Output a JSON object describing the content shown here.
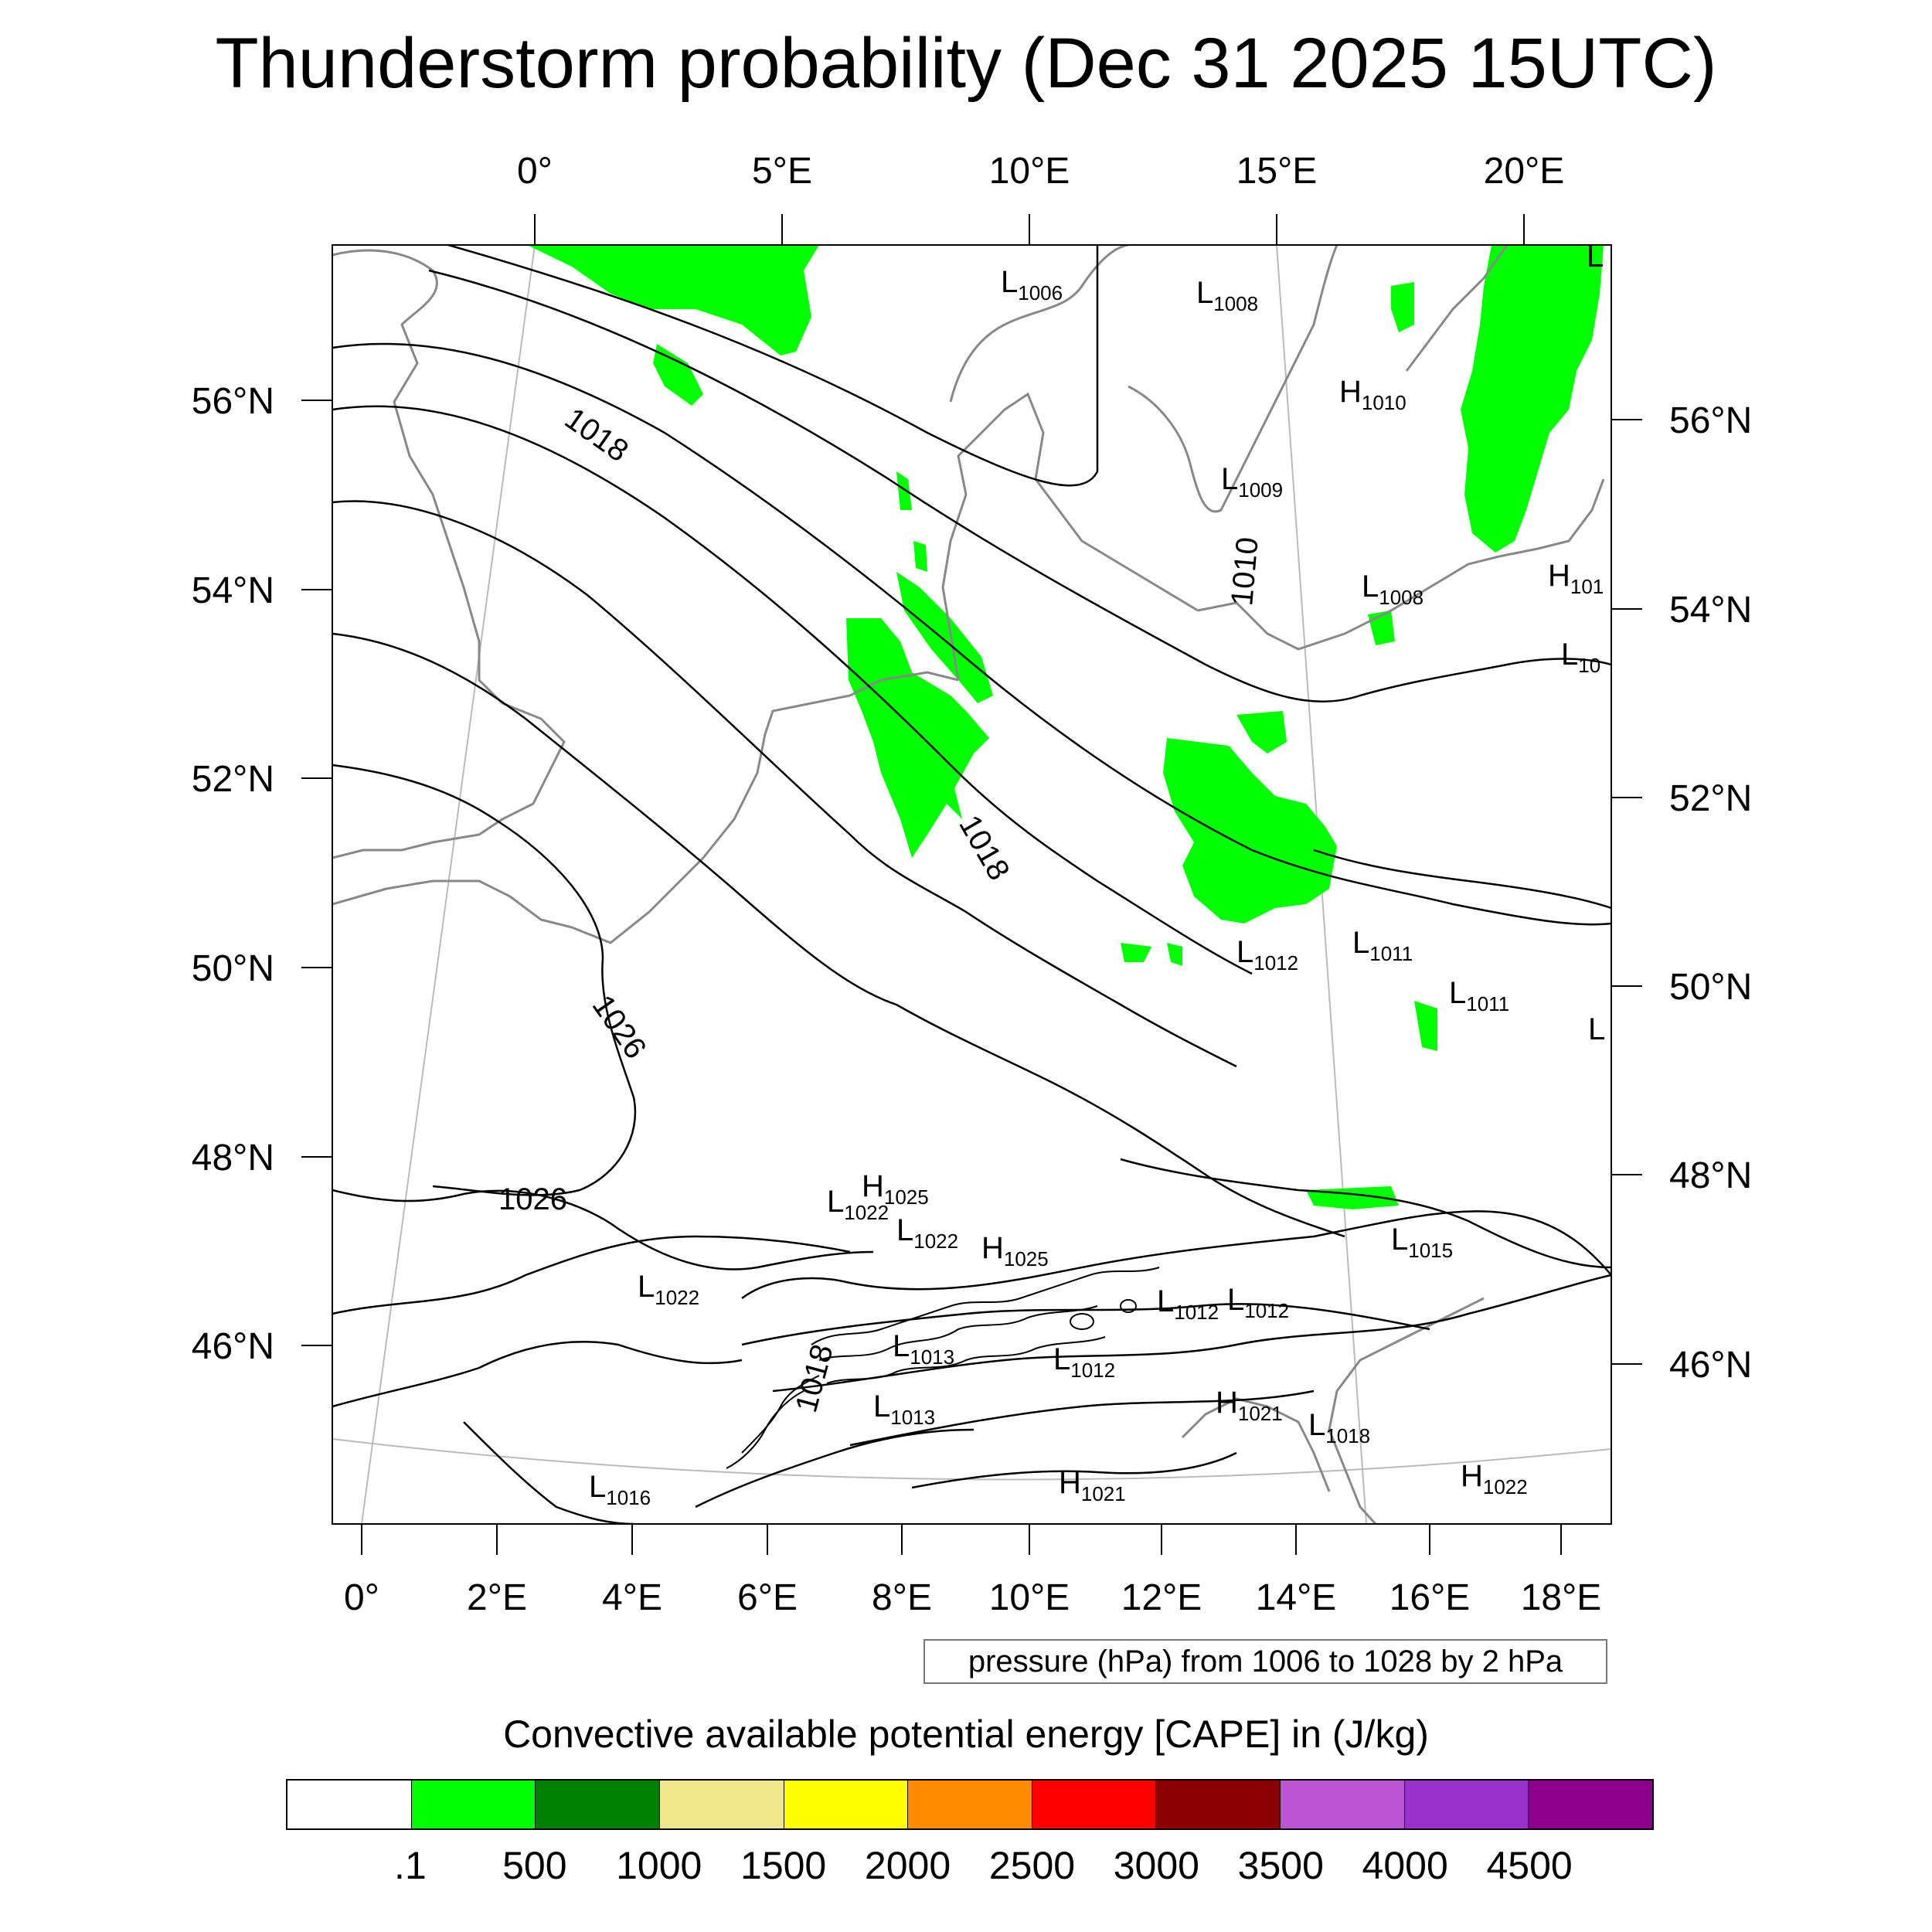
{
  "title": "Thunderstorm probability (Dec 31 2025 15UTC)",
  "axes": {
    "top_lon": [
      "0°",
      "5°E",
      "10°E",
      "15°E",
      "20°E"
    ],
    "bottom_lon": [
      "0°",
      "2°E",
      "4°E",
      "6°E",
      "8°E",
      "10°E",
      "12°E",
      "14°E",
      "16°E",
      "18°E"
    ],
    "left_lat": [
      "56°N",
      "54°N",
      "52°N",
      "50°N",
      "48°N",
      "46°N"
    ],
    "right_lat": [
      "56°N",
      "54°N",
      "52°N",
      "50°N",
      "48°N",
      "46°N"
    ]
  },
  "isobar_labels": [
    "1018",
    "1018",
    "1018",
    "1026",
    "1026",
    "1010"
  ],
  "pressure_centers": [
    {
      "type": "L",
      "value": "1006"
    },
    {
      "type": "L",
      "value": "1008"
    },
    {
      "type": "H",
      "value": "1010"
    },
    {
      "type": "L",
      "value": "1009"
    },
    {
      "type": "L",
      "value": "1008"
    },
    {
      "type": "H",
      "value": "101"
    },
    {
      "type": "L",
      "value": "10"
    },
    {
      "type": "L",
      "value": ""
    },
    {
      "type": "L",
      "value": "1012"
    },
    {
      "type": "L",
      "value": "1011"
    },
    {
      "type": "L",
      "value": "1011"
    },
    {
      "type": "L",
      "value": ""
    },
    {
      "type": "H",
      "value": "1025"
    },
    {
      "type": "L",
      "value": "1022"
    },
    {
      "type": "L",
      "value": "1022"
    },
    {
      "type": "H",
      "value": "1025"
    },
    {
      "type": "L",
      "value": "1022"
    },
    {
      "type": "L",
      "value": "1015"
    },
    {
      "type": "L",
      "value": "1012"
    },
    {
      "type": "L",
      "value": "1012"
    },
    {
      "type": "L",
      "value": "1013"
    },
    {
      "type": "L",
      "value": "1012"
    },
    {
      "type": "L",
      "value": "1013"
    },
    {
      "type": "H",
      "value": "1021"
    },
    {
      "type": "L",
      "value": "1018"
    },
    {
      "type": "H",
      "value": "1022"
    },
    {
      "type": "L",
      "value": "1016"
    },
    {
      "type": "H",
      "value": "1021"
    }
  ],
  "pressure_info": "pressure (hPa) from 1006 to 1028 by 2 hPa",
  "colorbar": {
    "title": "Convective available potential energy [CAPE] in (J/kg)",
    "colors": [
      "#ffffff",
      "#00ff00",
      "#008000",
      "#f0e68c",
      "#ffff00",
      "#ff8c00",
      "#ff0000",
      "#8b0000",
      "#ba55d3",
      "#9932cc",
      "#8b008b"
    ],
    "labels": [
      ".1",
      "500",
      "1000",
      "1500",
      "2000",
      "2500",
      "3000",
      "3500",
      "4000",
      "4500"
    ]
  },
  "colors": {
    "cape_green": "#00ff00",
    "isobar": "#000000",
    "coastline": "#888888"
  }
}
